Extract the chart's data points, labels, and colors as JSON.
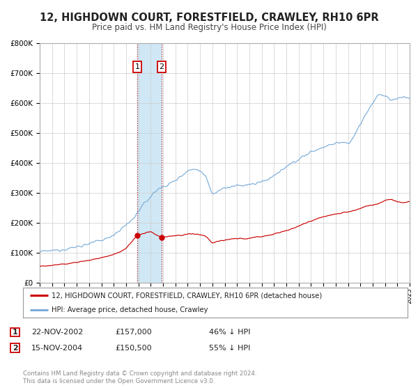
{
  "title": "12, HIGHDOWN COURT, FORESTFIELD, CRAWLEY, RH10 6PR",
  "subtitle": "Price paid vs. HM Land Registry's House Price Index (HPI)",
  "legend_line1": "12, HIGHDOWN COURT, FORESTFIELD, CRAWLEY, RH10 6PR (detached house)",
  "legend_line2": "HPI: Average price, detached house, Crawley",
  "transaction1_date": "22-NOV-2002",
  "transaction1_price": "£157,000",
  "transaction1_hpi": "46% ↓ HPI",
  "transaction1_year": 2002.9,
  "transaction1_value": 157000,
  "transaction2_date": "15-NOV-2004",
  "transaction2_price": "£150,500",
  "transaction2_hpi": "55% ↓ HPI",
  "transaction2_year": 2004.88,
  "transaction2_value": 150500,
  "red_line_color": "#cc0000",
  "blue_line_color": "#7aadda",
  "shade_color": "#d0e8f5",
  "background_color": "#ffffff",
  "grid_color": "#cccccc",
  "footnote_line1": "Contains HM Land Registry data © Crown copyright and database right 2024.",
  "footnote_line2": "This data is licensed under the Open Government Licence v3.0.",
  "ylim": [
    0,
    800000
  ],
  "yticks": [
    0,
    100000,
    200000,
    300000,
    400000,
    500000,
    600000,
    700000,
    800000
  ],
  "xmin": 1995,
  "xmax": 2025
}
